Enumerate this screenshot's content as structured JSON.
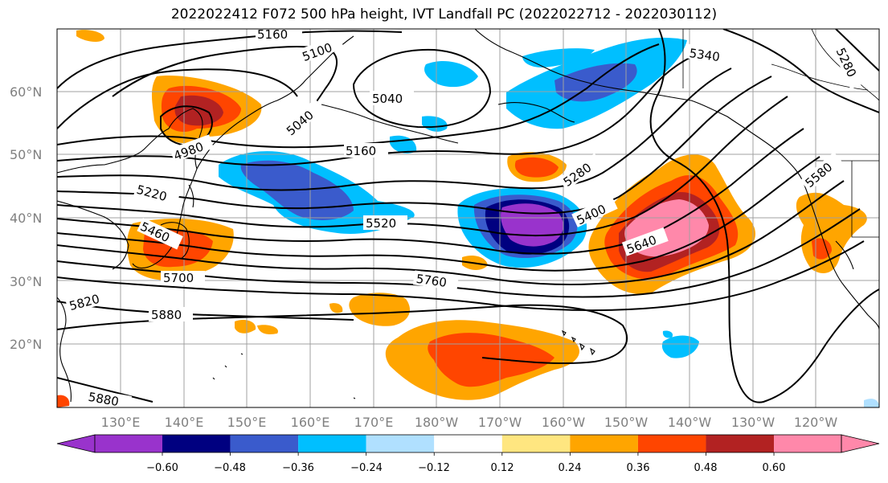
{
  "title": "2022022412 F072 500 hPa height, IVT Landfall PC (2022022712 - 2022030112)",
  "lat_labels": [
    "20°N",
    "30°N",
    "40°N",
    "50°N",
    "60°N"
  ],
  "lon_labels": [
    "130°E",
    "140°E",
    "150°E",
    "160°E",
    "170°E",
    "180°W",
    "170°W",
    "160°W",
    "150°W",
    "140°W",
    "130°W",
    "120°W"
  ],
  "contour_labels": [
    "5160",
    "5100",
    "5040",
    "5040",
    "5340",
    "5280",
    "4980",
    "5160",
    "5220",
    "5280",
    "5400",
    "5520",
    "5460",
    "5640",
    "5580",
    "5700",
    "5760",
    "5820",
    "5880",
    "5880"
  ],
  "colorbar": {
    "ticks": [
      "−0.60",
      "−0.48",
      "−0.36",
      "−0.24",
      "−0.12",
      "0.12",
      "0.24",
      "0.36",
      "0.48",
      "0.60"
    ],
    "colors": [
      "#9933cc",
      "#000080",
      "#3a5bcc",
      "#00bfff",
      "#b0e0ff",
      "#ffffff",
      "#ffe680",
      "#ffa500",
      "#ff4500",
      "#b22222",
      "#ff88aa"
    ]
  },
  "colors": {
    "strong_negative": "#9933cc",
    "negative_2": "#000080",
    "negative_3": "#3a5bcc",
    "negative_4": "#00bfff",
    "positive_1": "#ffe680",
    "positive_2": "#ffa500",
    "positive_3": "#ff4500",
    "positive_4": "#b22222",
    "strong_positive": "#ff88aa"
  }
}
